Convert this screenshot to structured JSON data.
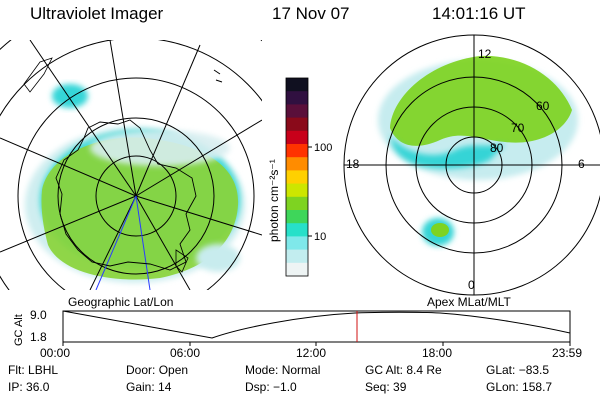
{
  "header": {
    "instrument": "Ultraviolet Imager",
    "date": "17 Nov 07",
    "time": "14:01:16 UT"
  },
  "colorbar": {
    "unit_label": "photon cm⁻²s⁻¹",
    "tick_labels": [
      "100",
      "10"
    ],
    "colors": [
      "#101020",
      "#301040",
      "#5a0f3a",
      "#8a0a1a",
      "#c8001a",
      "#ff3300",
      "#ff8c00",
      "#ffd000",
      "#cde600",
      "#7ed321",
      "#3ed65a",
      "#27e0c9",
      "#7fe8ea",
      "#c2edef",
      "#eef4f4"
    ]
  },
  "left_panel": {
    "label": "Geographic Lat/Lon",
    "colors": {
      "aurora": "#8ad43a",
      "aurora_edge": "#36d6d8",
      "aurora_halo": "#c8ecee"
    }
  },
  "right_panel": {
    "label": "Apex MLat/MLT",
    "lat_labels": [
      "60",
      "70",
      "80"
    ],
    "mlt_labels": [
      "12",
      "18",
      "6",
      "0"
    ],
    "colors": {
      "aurora": "#7ed321",
      "aurora_edge": "#34d4d6",
      "aurora_halo": "#c6ecef"
    }
  },
  "altitude_plot": {
    "ylabel": "GC Alt",
    "y_ticks": [
      "9.0",
      "1.8"
    ],
    "x_ticks": [
      "00:00",
      "06:00",
      "12:00",
      "18:00",
      "23:59"
    ],
    "marker_color": "#d01010"
  },
  "info_rows": [
    [
      {
        "label": "Flt:",
        "value": "LBHL"
      },
      {
        "label": "Door:",
        "value": "Open"
      },
      {
        "label": "Mode:",
        "value": "Normal"
      },
      {
        "label": "GC Alt:",
        "value": "8.4 Re"
      },
      {
        "label": "GLat:",
        "value": "−83.5"
      }
    ],
    [
      {
        "label": "IP:",
        "value": "36.0"
      },
      {
        "label": "Gain:",
        "value": "14"
      },
      {
        "label": "Dsp:",
        "value": "−1.0"
      },
      {
        "label": "Seq:",
        "value": "39"
      },
      {
        "label": "GLon:",
        "value": "158.7"
      }
    ]
  ]
}
